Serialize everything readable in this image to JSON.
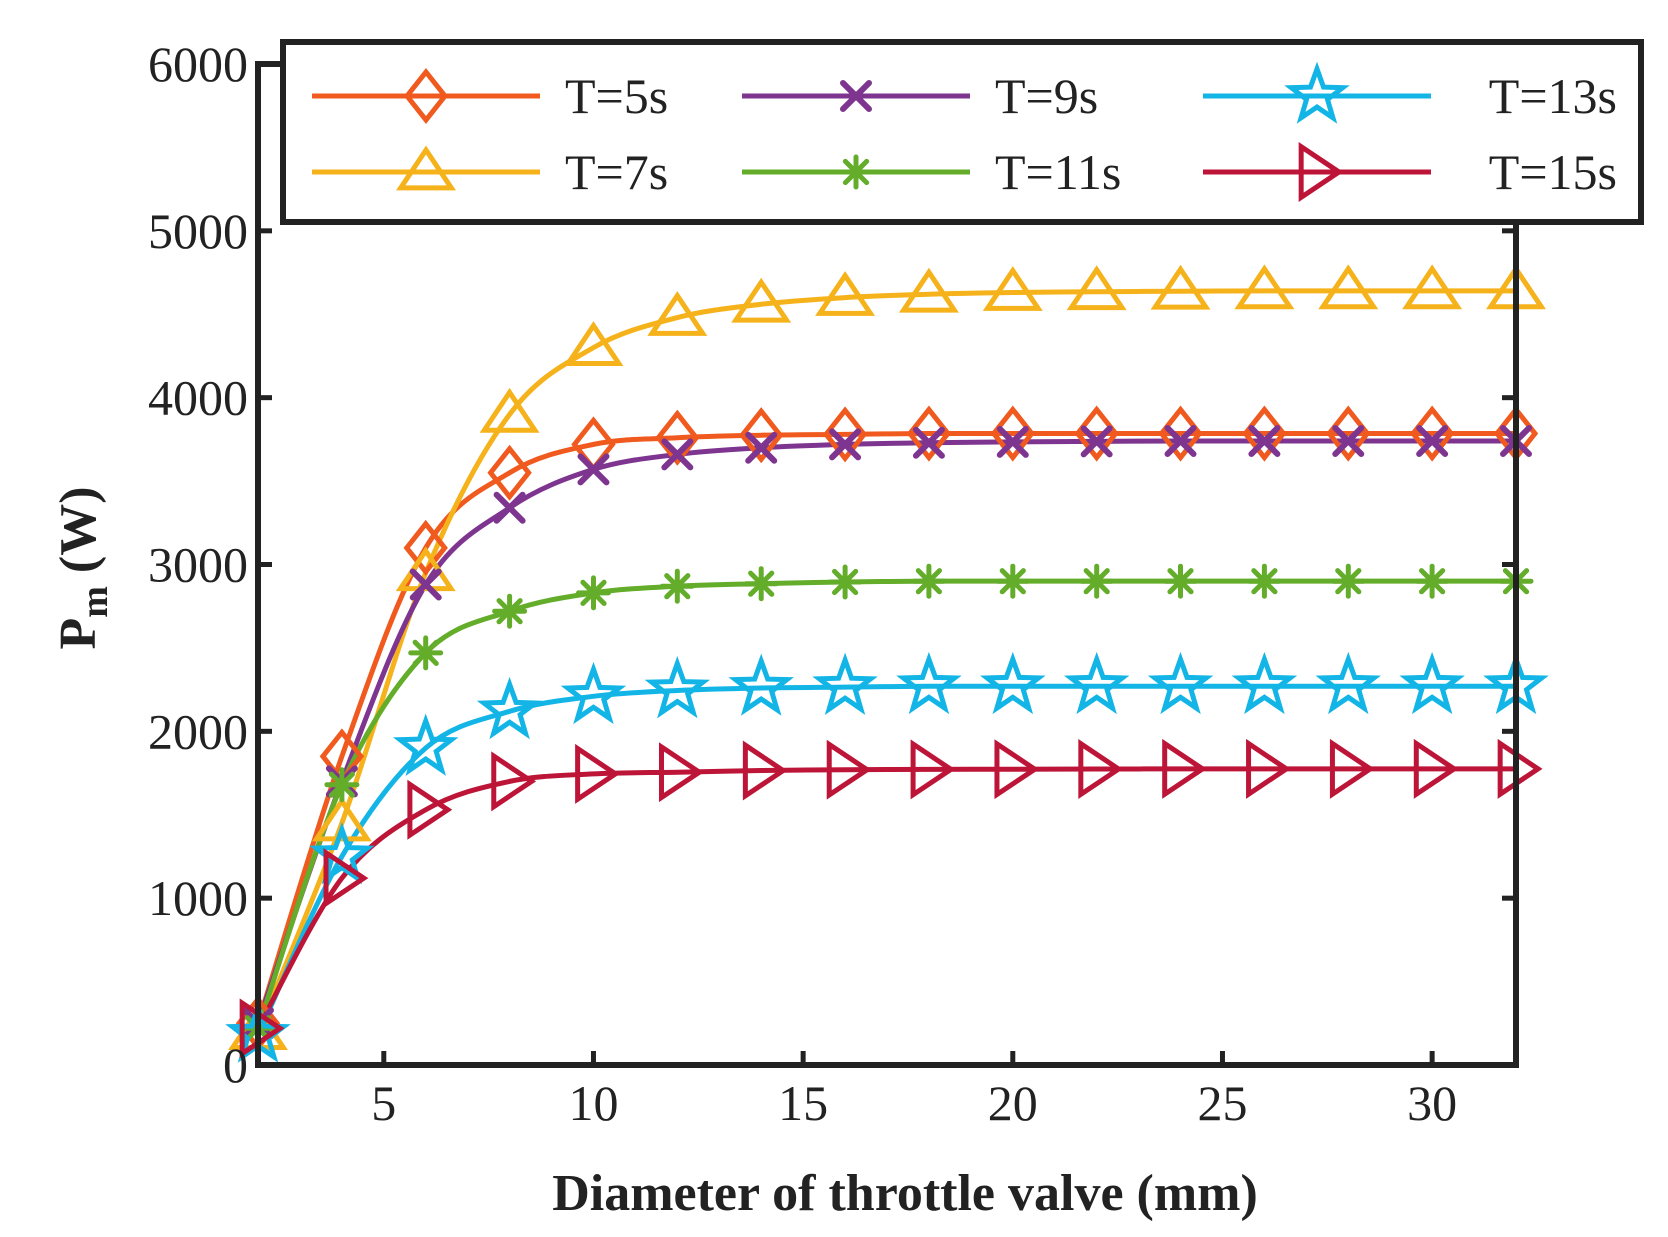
{
  "chart_data": {
    "type": "line",
    "title": "",
    "xlabel": "Diameter of throttle valve (mm)",
    "ylabel": "P",
    "ylabel_sub": "m",
    "ylabel_unit": " (W)",
    "xlim": [
      2,
      32
    ],
    "ylim": [
      0,
      6000
    ],
    "xticks": [
      5,
      10,
      15,
      20,
      25,
      30
    ],
    "yticks": [
      0,
      1000,
      2000,
      3000,
      4000,
      5000,
      6000
    ],
    "grid": false,
    "legend_position": "top",
    "x": [
      2,
      4,
      6,
      8,
      10,
      12,
      14,
      16,
      18,
      20,
      22,
      24,
      26,
      28,
      30,
      32
    ],
    "series": [
      {
        "name": "T=5s",
        "color": "#f05a1e",
        "marker": "diamond",
        "values": [
          250,
          1850,
          3100,
          3550,
          3720,
          3760,
          3775,
          3780,
          3785,
          3785,
          3785,
          3785,
          3785,
          3785,
          3785,
          3785
        ]
      },
      {
        "name": "T=7s",
        "color": "#f5b21a",
        "marker": "triangle-up",
        "values": [
          200,
          1450,
          2950,
          3900,
          4300,
          4480,
          4560,
          4600,
          4620,
          4630,
          4635,
          4638,
          4640,
          4640,
          4640,
          4640
        ]
      },
      {
        "name": "T=9s",
        "color": "#7e3590",
        "marker": "x",
        "values": [
          250,
          1700,
          2880,
          3340,
          3570,
          3660,
          3700,
          3720,
          3730,
          3735,
          3738,
          3740,
          3740,
          3740,
          3740,
          3740
        ]
      },
      {
        "name": "T=11s",
        "color": "#63ad2a",
        "marker": "asterisk",
        "values": [
          220,
          1680,
          2470,
          2720,
          2830,
          2870,
          2885,
          2895,
          2900,
          2900,
          2900,
          2900,
          2900,
          2900,
          2900,
          2900
        ]
      },
      {
        "name": "T=13s",
        "color": "#12b5e6",
        "marker": "pentagram",
        "values": [
          180,
          1250,
          1900,
          2120,
          2210,
          2245,
          2260,
          2265,
          2270,
          2270,
          2270,
          2270,
          2270,
          2270,
          2270,
          2270
        ]
      },
      {
        "name": "T=15s",
        "color": "#bd1538",
        "marker": "triangle-right",
        "values": [
          220,
          1120,
          1530,
          1700,
          1745,
          1755,
          1765,
          1770,
          1772,
          1773,
          1774,
          1775,
          1775,
          1775,
          1775,
          1775
        ]
      }
    ]
  }
}
